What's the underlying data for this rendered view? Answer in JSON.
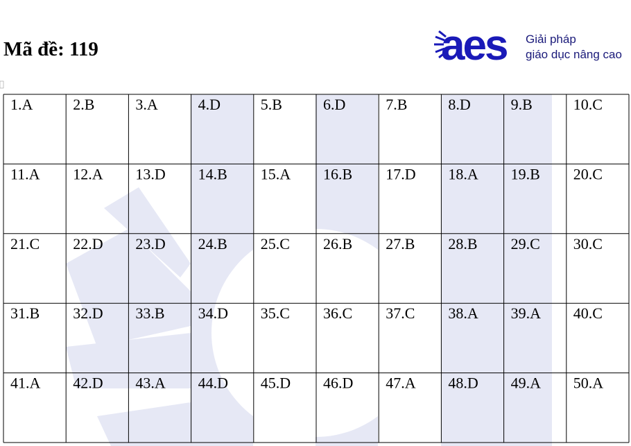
{
  "header": {
    "title": "Mã đề: 119"
  },
  "logo": {
    "brand": "aes",
    "tagline_1": "Giải pháp",
    "tagline_2": "giáo dục nâng cao"
  },
  "table": {
    "rows": [
      [
        "1.A",
        "2.B",
        "3.A",
        "4.D",
        "5.B",
        "6.D",
        "7.B",
        "8.D",
        "9.B",
        "10.C"
      ],
      [
        "11.A",
        "12.A",
        "13.D",
        "14.B",
        "15.A",
        "16.B",
        "17.D",
        "18.A",
        "19.B",
        "20.C"
      ],
      [
        "21.C",
        "22.D",
        "23.D",
        "24.B",
        "25.C",
        "26.B",
        "27.B",
        "28.B",
        "29.C",
        "30.C"
      ],
      [
        "31.B",
        "32.D",
        "33.B",
        "34.D",
        "35.C",
        "36.C",
        "37.C",
        "38.A",
        "39.A",
        "40.C"
      ],
      [
        "41.A",
        "42.D",
        "43.A",
        "44.D",
        "45.D",
        "46.D",
        "47.A",
        "48.D",
        "49.A",
        "50.A"
      ]
    ]
  }
}
